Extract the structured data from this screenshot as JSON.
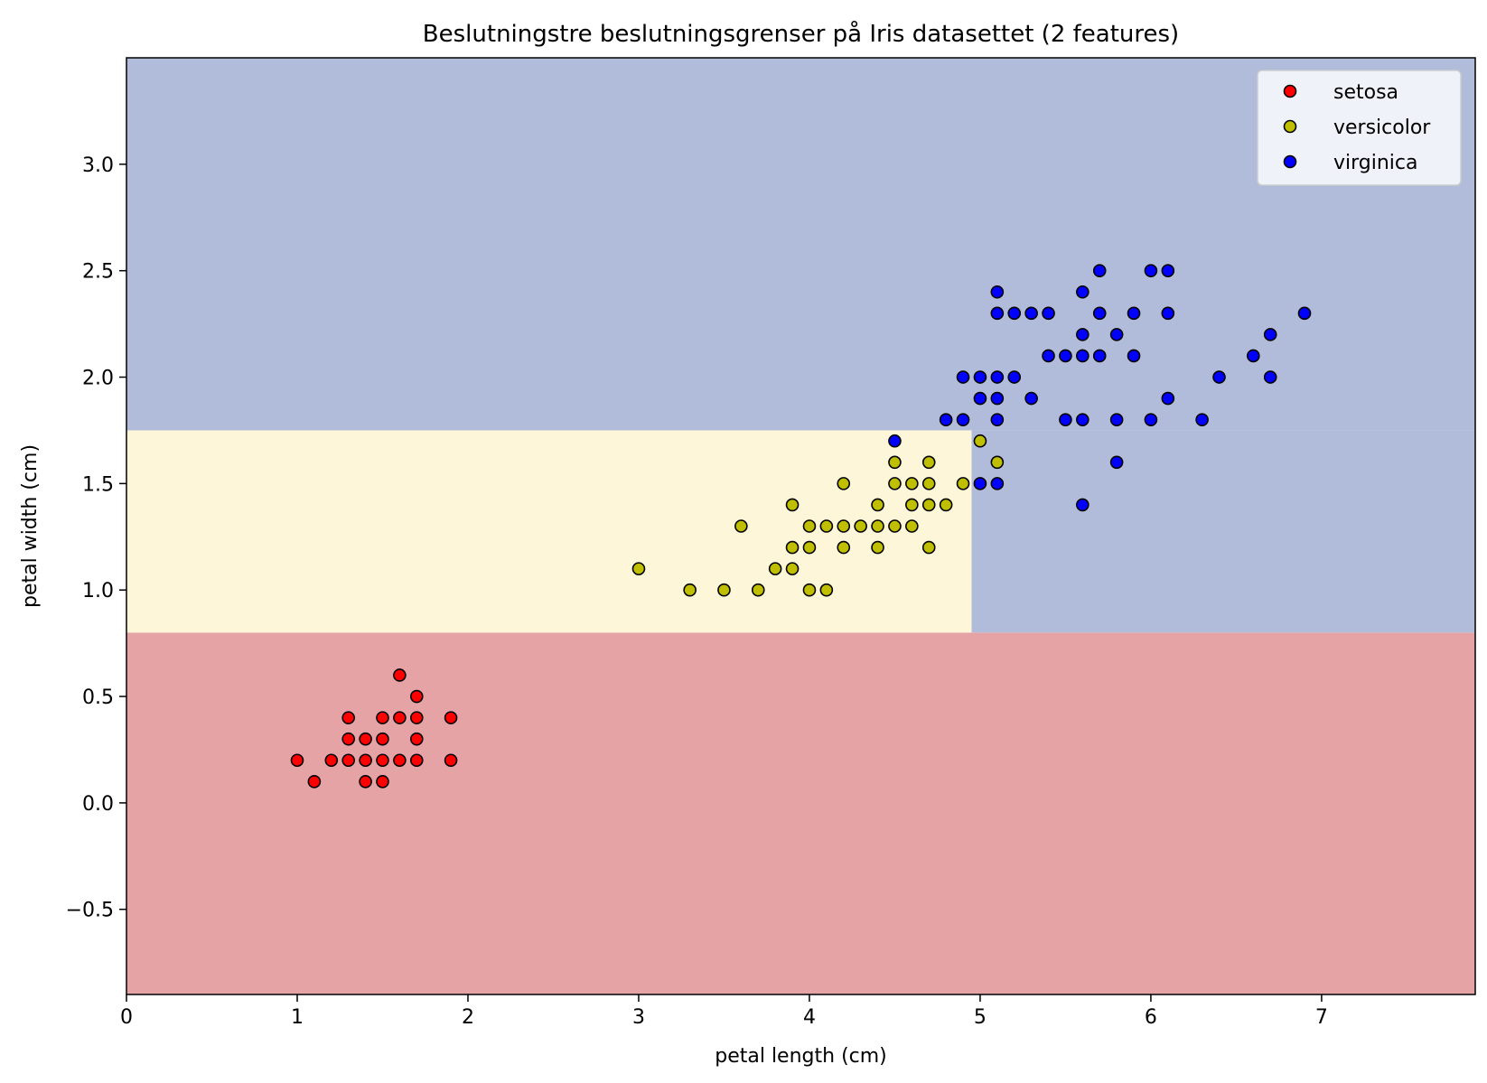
{
  "chart_data": {
    "type": "scatter",
    "title": "Beslutningstre beslutningsgrenser på Iris datasettet (2 features)",
    "xlabel": "petal length (cm)",
    "ylabel": "petal width (cm)",
    "xlim": [
      0,
      7.9
    ],
    "ylim": [
      -0.9,
      3.5
    ],
    "xticks": [
      "0",
      "1",
      "2",
      "3",
      "4",
      "5",
      "6",
      "7"
    ],
    "yticks": [
      "−0.5",
      "0.0",
      "0.5",
      "1.0",
      "1.5",
      "2.0",
      "2.5",
      "3.0"
    ],
    "grid": false,
    "legend_position": "top-right",
    "regions": [
      {
        "class": "setosa",
        "x": [
          0,
          7.9
        ],
        "y": [
          -0.9,
          0.8
        ],
        "color": "#e6a3a6"
      },
      {
        "class": "versicolor",
        "x": [
          0,
          4.95
        ],
        "y": [
          0.8,
          1.75
        ],
        "color": "#fdf6d8"
      },
      {
        "class": "virginica",
        "x": [
          4.95,
          7.9
        ],
        "y": [
          0.8,
          1.75
        ],
        "color": "#b1bcda"
      },
      {
        "class": "virginica",
        "x": [
          0,
          7.9
        ],
        "y": [
          1.75,
          3.5
        ],
        "color": "#b1bcda"
      }
    ],
    "series": [
      {
        "name": "setosa",
        "color": "#ff0000",
        "points": [
          [
            1.0,
            0.2
          ],
          [
            1.1,
            0.1
          ],
          [
            1.2,
            0.2
          ],
          [
            1.3,
            0.2
          ],
          [
            1.3,
            0.3
          ],
          [
            1.3,
            0.4
          ],
          [
            1.4,
            0.1
          ],
          [
            1.4,
            0.2
          ],
          [
            1.4,
            0.3
          ],
          [
            1.5,
            0.1
          ],
          [
            1.5,
            0.2
          ],
          [
            1.5,
            0.3
          ],
          [
            1.5,
            0.4
          ],
          [
            1.6,
            0.2
          ],
          [
            1.6,
            0.4
          ],
          [
            1.6,
            0.6
          ],
          [
            1.7,
            0.2
          ],
          [
            1.7,
            0.3
          ],
          [
            1.7,
            0.4
          ],
          [
            1.7,
            0.5
          ],
          [
            1.9,
            0.2
          ],
          [
            1.9,
            0.4
          ]
        ]
      },
      {
        "name": "versicolor",
        "color": "#bfbf00",
        "points": [
          [
            3.0,
            1.1
          ],
          [
            3.3,
            1.0
          ],
          [
            3.5,
            1.0
          ],
          [
            3.6,
            1.3
          ],
          [
            3.7,
            1.0
          ],
          [
            3.8,
            1.1
          ],
          [
            3.9,
            1.1
          ],
          [
            3.9,
            1.2
          ],
          [
            3.9,
            1.4
          ],
          [
            4.0,
            1.0
          ],
          [
            4.0,
            1.2
          ],
          [
            4.0,
            1.3
          ],
          [
            4.1,
            1.0
          ],
          [
            4.1,
            1.3
          ],
          [
            4.2,
            1.2
          ],
          [
            4.2,
            1.3
          ],
          [
            4.2,
            1.5
          ],
          [
            4.3,
            1.3
          ],
          [
            4.4,
            1.2
          ],
          [
            4.4,
            1.3
          ],
          [
            4.4,
            1.4
          ],
          [
            4.5,
            1.3
          ],
          [
            4.5,
            1.5
          ],
          [
            4.5,
            1.6
          ],
          [
            4.6,
            1.3
          ],
          [
            4.6,
            1.4
          ],
          [
            4.6,
            1.5
          ],
          [
            4.7,
            1.2
          ],
          [
            4.7,
            1.4
          ],
          [
            4.7,
            1.5
          ],
          [
            4.7,
            1.6
          ],
          [
            4.8,
            1.4
          ],
          [
            4.9,
            1.5
          ],
          [
            5.0,
            1.7
          ],
          [
            5.1,
            1.6
          ]
        ]
      },
      {
        "name": "virginica",
        "color": "#0000ff",
        "points": [
          [
            4.5,
            1.7
          ],
          [
            4.8,
            1.8
          ],
          [
            4.9,
            1.8
          ],
          [
            4.9,
            2.0
          ],
          [
            5.0,
            1.5
          ],
          [
            5.0,
            1.9
          ],
          [
            5.0,
            2.0
          ],
          [
            5.1,
            1.5
          ],
          [
            5.1,
            1.8
          ],
          [
            5.1,
            1.9
          ],
          [
            5.1,
            2.0
          ],
          [
            5.1,
            2.3
          ],
          [
            5.1,
            2.4
          ],
          [
            5.2,
            2.0
          ],
          [
            5.2,
            2.3
          ],
          [
            5.3,
            1.9
          ],
          [
            5.3,
            2.3
          ],
          [
            5.4,
            2.1
          ],
          [
            5.4,
            2.3
          ],
          [
            5.5,
            1.8
          ],
          [
            5.5,
            2.1
          ],
          [
            5.6,
            1.4
          ],
          [
            5.6,
            1.8
          ],
          [
            5.6,
            2.1
          ],
          [
            5.6,
            2.2
          ],
          [
            5.6,
            2.4
          ],
          [
            5.7,
            2.1
          ],
          [
            5.7,
            2.3
          ],
          [
            5.7,
            2.5
          ],
          [
            5.8,
            1.6
          ],
          [
            5.8,
            1.8
          ],
          [
            5.8,
            2.2
          ],
          [
            5.9,
            2.1
          ],
          [
            5.9,
            2.3
          ],
          [
            6.0,
            1.8
          ],
          [
            6.0,
            2.5
          ],
          [
            6.1,
            1.9
          ],
          [
            6.1,
            2.3
          ],
          [
            6.1,
            2.5
          ],
          [
            6.3,
            1.8
          ],
          [
            6.4,
            2.0
          ],
          [
            6.6,
            2.1
          ],
          [
            6.7,
            2.0
          ],
          [
            6.7,
            2.2
          ],
          [
            6.9,
            2.3
          ]
        ]
      }
    ]
  }
}
